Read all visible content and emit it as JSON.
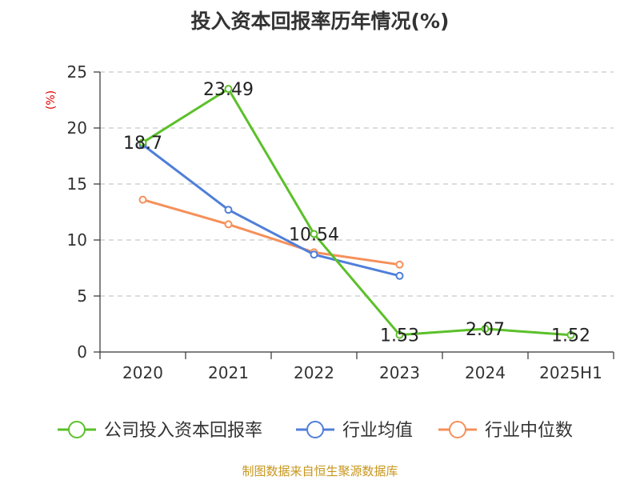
{
  "chart_data": {
    "type": "line",
    "title": "投入资本回报率历年情况(%)",
    "ylabel": "(%)",
    "categories": [
      "2020",
      "2021",
      "2022",
      "2023",
      "2024",
      "2025H1"
    ],
    "yticks": [
      "0",
      "5",
      "10",
      "15",
      "20",
      "25"
    ],
    "ylim": [
      0,
      25
    ],
    "grid": "horizontal-dashed",
    "legend_position": "bottom",
    "source": "制图数据来自恒生聚源数据库",
    "series": [
      {
        "name": "公司投入资本回报率",
        "color": "#5bc02a",
        "values": [
          18.7,
          23.49,
          10.54,
          1.53,
          2.07,
          1.52
        ],
        "labels": [
          "18.7",
          "23.49",
          "10.54",
          "1.53",
          "2.07",
          "1.52"
        ]
      },
      {
        "name": "行业均值",
        "color": "#4f7fd9",
        "values": [
          18.5,
          12.7,
          8.7,
          6.8,
          null,
          null
        ]
      },
      {
        "name": "行业中位数",
        "color": "#f5905a",
        "values": [
          13.6,
          11.4,
          8.9,
          7.8,
          null,
          null
        ]
      }
    ]
  }
}
